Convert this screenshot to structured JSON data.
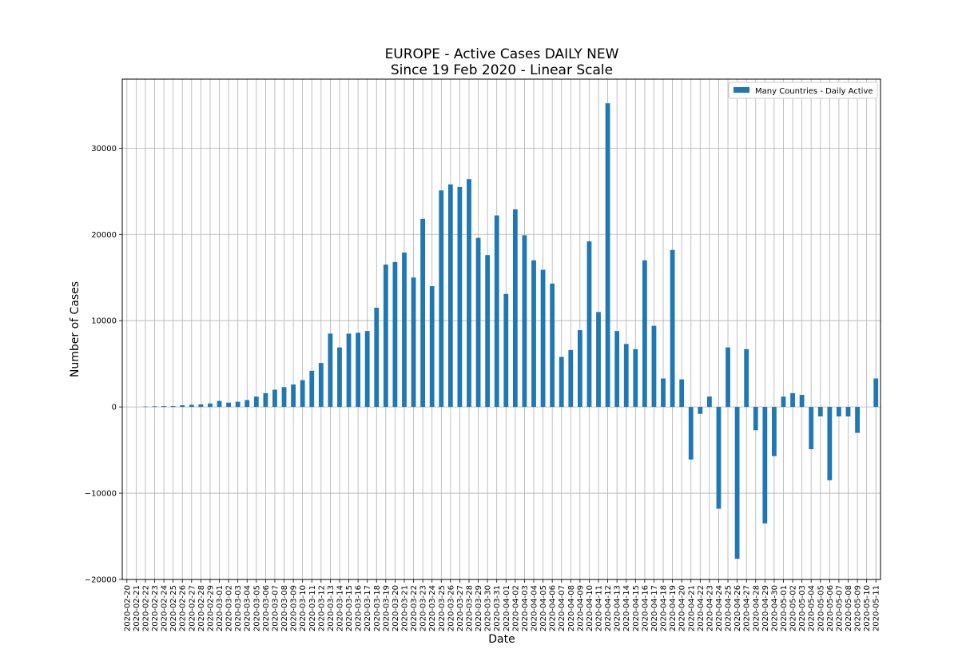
{
  "chart_data": {
    "type": "bar",
    "title_line1": "EUROPE - Active Cases DAILY NEW",
    "title_line2": "Since 19 Feb 2020 - Linear Scale",
    "xlabel": "Date",
    "ylabel": "Number of Cases",
    "ylim": [
      -20000,
      38000
    ],
    "yticks": [
      -20000,
      -10000,
      0,
      10000,
      20000,
      30000
    ],
    "grid": true,
    "legend_position": "top-right",
    "colors": {
      "bar": "#1f77b4",
      "grid": "#b0b0b0",
      "axis": "#000000"
    },
    "categories": [
      "2020-02-20",
      "2020-02-21",
      "2020-02-22",
      "2020-02-23",
      "2020-02-24",
      "2020-02-25",
      "2020-02-26",
      "2020-02-27",
      "2020-02-28",
      "2020-02-29",
      "2020-03-01",
      "2020-03-02",
      "2020-03-03",
      "2020-03-04",
      "2020-03-05",
      "2020-03-06",
      "2020-03-07",
      "2020-03-08",
      "2020-03-09",
      "2020-03-10",
      "2020-03-11",
      "2020-03-12",
      "2020-03-13",
      "2020-03-14",
      "2020-03-15",
      "2020-03-16",
      "2020-03-17",
      "2020-03-18",
      "2020-03-19",
      "2020-03-20",
      "2020-03-21",
      "2020-03-22",
      "2020-03-23",
      "2020-03-24",
      "2020-03-25",
      "2020-03-26",
      "2020-03-27",
      "2020-03-28",
      "2020-03-29",
      "2020-03-30",
      "2020-03-31",
      "2020-04-01",
      "2020-04-02",
      "2020-04-03",
      "2020-04-04",
      "2020-04-05",
      "2020-04-06",
      "2020-04-07",
      "2020-04-08",
      "2020-04-09",
      "2020-04-10",
      "2020-04-11",
      "2020-04-12",
      "2020-04-13",
      "2020-04-14",
      "2020-04-15",
      "2020-04-16",
      "2020-04-17",
      "2020-04-18",
      "2020-04-19",
      "2020-04-20",
      "2020-04-21",
      "2020-04-22",
      "2020-04-23",
      "2020-04-24",
      "2020-04-25",
      "2020-04-26",
      "2020-04-27",
      "2020-04-28",
      "2020-04-29",
      "2020-04-30",
      "2020-05-01",
      "2020-05-02",
      "2020-05-03",
      "2020-05-04",
      "2020-05-05",
      "2020-05-06",
      "2020-05-07",
      "2020-05-08",
      "2020-05-09",
      "2020-05-10",
      "2020-05-11"
    ],
    "series": [
      {
        "name": "Many Countries - Daily Active",
        "values": [
          0,
          0,
          50,
          80,
          100,
          100,
          200,
          250,
          300,
          400,
          700,
          500,
          600,
          800,
          1200,
          1600,
          2000,
          2300,
          2600,
          3100,
          4200,
          5100,
          8500,
          6900,
          8500,
          8600,
          8800,
          11500,
          16500,
          16800,
          17900,
          15000,
          21800,
          14000,
          25100,
          25800,
          25500,
          26400,
          19600,
          17600,
          22200,
          13100,
          22900,
          19900,
          17000,
          15900,
          14300,
          5800,
          6600,
          8900,
          19200,
          11000,
          35200,
          8800,
          7300,
          6700,
          17000,
          9400,
          3300,
          18200,
          3200,
          -6100,
          -800,
          1200,
          -11800,
          6900,
          -17600,
          6700,
          -2700,
          -13500,
          -5700,
          1200,
          1600,
          1400,
          -4900,
          -1100,
          -8500,
          -1100,
          -1100,
          -3000,
          0,
          3300
        ]
      }
    ]
  }
}
